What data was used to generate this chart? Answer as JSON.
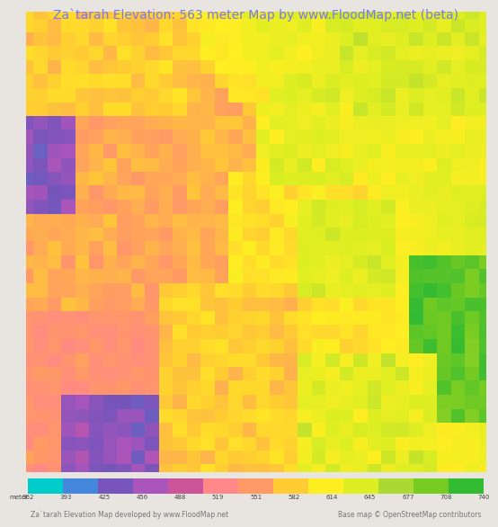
{
  "title": "Za`tarah Elevation: 563 meter Map by www.FloodMap.net (beta)",
  "title_color": "#7777ff",
  "title_fontsize": 10,
  "bg_color": "#e8e4e0",
  "colorbar_values": [
    362,
    393,
    425,
    456,
    488,
    519,
    551,
    582,
    614,
    645,
    677,
    708,
    740
  ],
  "colorbar_colors": [
    "#00cccc",
    "#4488dd",
    "#7755bb",
    "#aa55bb",
    "#cc5599",
    "#ff8888",
    "#ff9966",
    "#ffcc33",
    "#ffee22",
    "#ddee22",
    "#aad933",
    "#77cc22",
    "#33bb33"
  ],
  "footer_left": "Za`tarah Elevation Map developed by www.FloodMap.net",
  "footer_right": "Base map © OpenStreetMap contributors",
  "footer_fontsize": 5.5,
  "meter_label": "meter",
  "fig_width": 5.12,
  "fig_height": 5.82,
  "colorbar_legend_colors": [
    "#00cccc",
    "#4488dd",
    "#7755bb",
    "#aa55bb",
    "#cc5599",
    "#ff8888",
    "#ff9966",
    "#ffcc33",
    "#ffee22",
    "#ddee22",
    "#aad933",
    "#77cc22",
    "#33bb33"
  ]
}
